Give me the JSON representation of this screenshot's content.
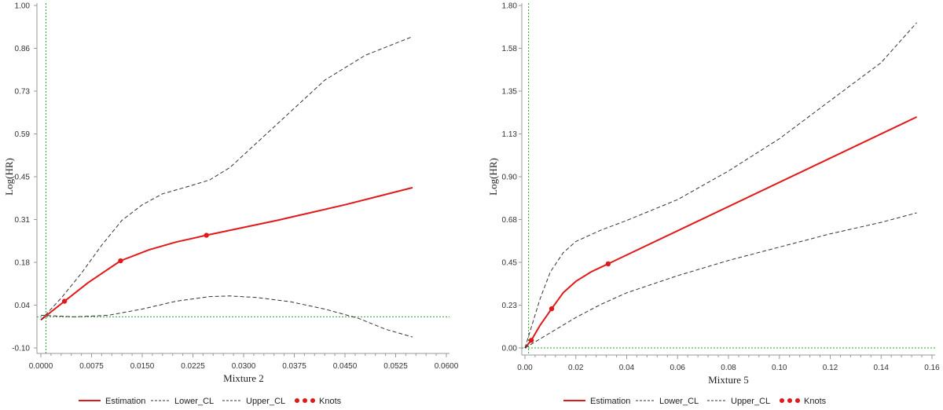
{
  "chart_data": [
    {
      "type": "line",
      "xlabel": "Mixture 2",
      "ylabel": "Log(HR)",
      "xlim": [
        0,
        0.06
      ],
      "ylim": [
        -0.1,
        1.0
      ],
      "xticks": [
        0,
        0.0075,
        0.015,
        0.0225,
        0.03,
        0.0375,
        0.045,
        0.0525,
        0.06
      ],
      "xtick_labels": [
        "0.0000",
        "0.0075",
        "0.0150",
        "0.0225",
        "0.0300",
        "0.0375",
        "0.0450",
        "0.0525",
        "0.0600"
      ],
      "yticks": [
        -0.1,
        0.0375,
        0.175,
        0.3125,
        0.45,
        0.5875,
        0.725,
        0.8625,
        1.0
      ],
      "ytick_labels": [
        "-0.10",
        "0.04",
        "0.18",
        "0.31",
        "0.45",
        "0.59",
        "0.73",
        "0.86",
        "1.00"
      ],
      "reference_lines": {
        "y": 0,
        "x": 0.0004
      },
      "series": [
        {
          "name": "Estimation",
          "points": [
            [
              0,
              -0.01
            ],
            [
              0.0035,
              0.05
            ],
            [
              0.007,
              0.11
            ],
            [
              0.0118,
              0.18
            ],
            [
              0.016,
              0.215
            ],
            [
              0.02,
              0.24
            ],
            [
              0.0245,
              0.262
            ],
            [
              0.035,
              0.31
            ],
            [
              0.045,
              0.36
            ],
            [
              0.055,
              0.415
            ]
          ]
        },
        {
          "name": "Lower_CL",
          "points": [
            [
              0,
              0.005
            ],
            [
              0.005,
              0.0
            ],
            [
              0.01,
              0.005
            ],
            [
              0.015,
              0.025
            ],
            [
              0.02,
              0.05
            ],
            [
              0.025,
              0.065
            ],
            [
              0.028,
              0.067
            ],
            [
              0.032,
              0.062
            ],
            [
              0.037,
              0.048
            ],
            [
              0.042,
              0.025
            ],
            [
              0.047,
              -0.005
            ],
            [
              0.051,
              -0.04
            ],
            [
              0.055,
              -0.065
            ]
          ]
        },
        {
          "name": "Upper_CL",
          "points": [
            [
              0,
              -0.01
            ],
            [
              0.003,
              0.06
            ],
            [
              0.006,
              0.14
            ],
            [
              0.009,
              0.23
            ],
            [
              0.012,
              0.31
            ],
            [
              0.015,
              0.36
            ],
            [
              0.018,
              0.395
            ],
            [
              0.022,
              0.42
            ],
            [
              0.025,
              0.44
            ],
            [
              0.028,
              0.48
            ],
            [
              0.032,
              0.56
            ],
            [
              0.037,
              0.66
            ],
            [
              0.042,
              0.76
            ],
            [
              0.048,
              0.84
            ],
            [
              0.055,
              0.9
            ]
          ]
        }
      ],
      "knots": [
        [
          0.0035,
          0.05
        ],
        [
          0.0118,
          0.18
        ],
        [
          0.0245,
          0.262
        ]
      ]
    },
    {
      "type": "line",
      "xlabel": "Mixture 5",
      "ylabel": "Log(HR)",
      "xlim": [
        0,
        0.16
      ],
      "ylim": [
        0,
        1.8
      ],
      "xticks": [
        0,
        0.02,
        0.04,
        0.06,
        0.08,
        0.1,
        0.12,
        0.14,
        0.16
      ],
      "xtick_labels": [
        "0.00",
        "0.02",
        "0.04",
        "0.06",
        "0.08",
        "0.10",
        "0.12",
        "0.14",
        "0.16"
      ],
      "yticks": [
        0,
        0.225,
        0.45,
        0.675,
        0.9,
        1.125,
        1.35,
        1.575,
        1.8
      ],
      "ytick_labels": [
        "0.00",
        "0.23",
        "0.45",
        "0.68",
        "0.90",
        "1.13",
        "1.35",
        "1.58",
        "1.80"
      ],
      "reference_lines": {
        "y": 0,
        "x": 0.0005
      },
      "series": [
        {
          "name": "Estimation",
          "points": [
            [
              0,
              0
            ],
            [
              0.0025,
              0.04
            ],
            [
              0.006,
              0.12
            ],
            [
              0.0105,
              0.206
            ],
            [
              0.015,
              0.29
            ],
            [
              0.02,
              0.35
            ],
            [
              0.026,
              0.4
            ],
            [
              0.0327,
              0.442
            ],
            [
              0.154,
              1.214
            ]
          ]
        },
        {
          "name": "Lower_CL",
          "points": [
            [
              0,
              0
            ],
            [
              0.01,
              0.08
            ],
            [
              0.02,
              0.16
            ],
            [
              0.03,
              0.23
            ],
            [
              0.04,
              0.29
            ],
            [
              0.06,
              0.38
            ],
            [
              0.08,
              0.46
            ],
            [
              0.1,
              0.53
            ],
            [
              0.12,
              0.6
            ],
            [
              0.14,
              0.66
            ],
            [
              0.154,
              0.71
            ]
          ]
        },
        {
          "name": "Upper_CL",
          "points": [
            [
              0,
              0
            ],
            [
              0.003,
              0.13
            ],
            [
              0.006,
              0.26
            ],
            [
              0.01,
              0.4
            ],
            [
              0.015,
              0.5
            ],
            [
              0.02,
              0.56
            ],
            [
              0.03,
              0.62
            ],
            [
              0.04,
              0.67
            ],
            [
              0.06,
              0.78
            ],
            [
              0.08,
              0.93
            ],
            [
              0.1,
              1.1
            ],
            [
              0.12,
              1.3
            ],
            [
              0.14,
              1.5
            ],
            [
              0.154,
              1.71
            ]
          ]
        }
      ],
      "knots": [
        [
          0.0025,
          0.04
        ],
        [
          0.0105,
          0.206
        ],
        [
          0.0327,
          0.442
        ]
      ]
    }
  ],
  "legend": {
    "items": [
      "Estimation",
      "Lower_CL",
      "Upper_CL",
      "Knots"
    ],
    "placement": "bottom"
  },
  "colors": {
    "estimation": "#e0191b",
    "cl": "#333333",
    "reference": "#2ca02c"
  }
}
